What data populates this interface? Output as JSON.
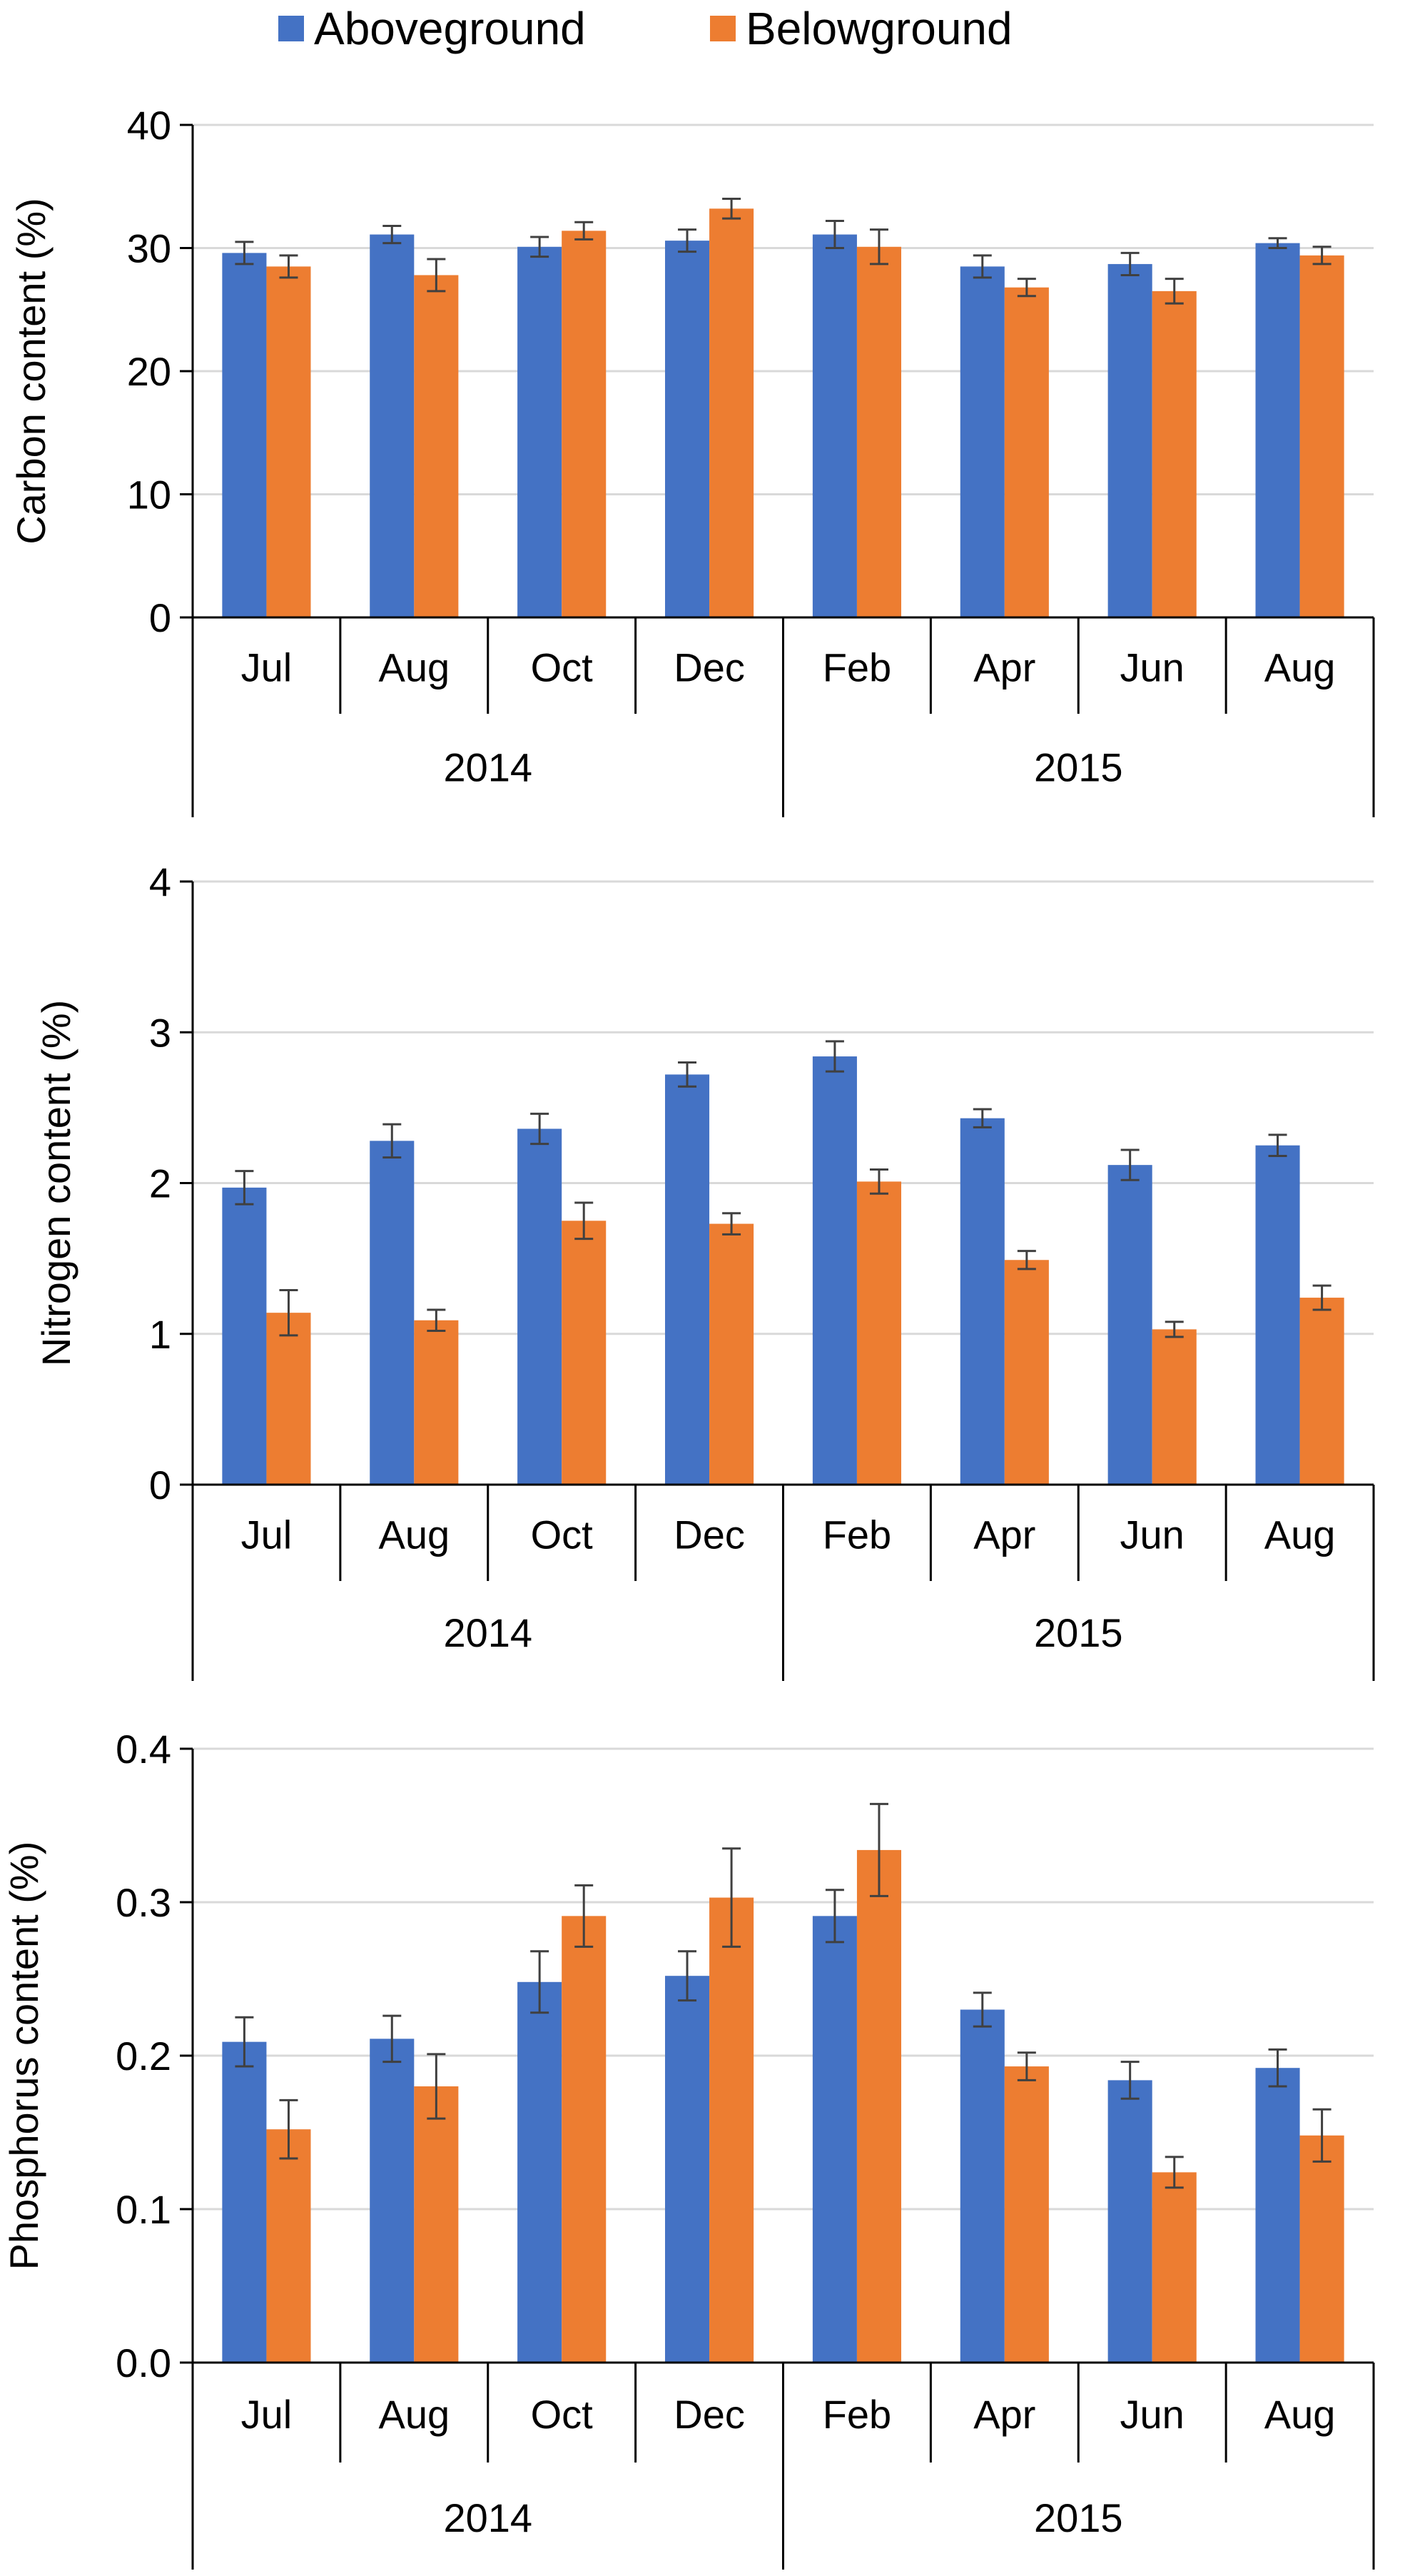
{
  "legend": {
    "aboveground": "Aboveground",
    "belowground": "Belowground"
  },
  "colors": {
    "aboveground": "#4472C4",
    "belowground": "#ED7D31",
    "grid": "#D9D9D9",
    "axis": "#000000"
  },
  "chart_data": [
    {
      "type": "bar",
      "ylabel": "Carbon content (%)",
      "ylim": [
        0,
        40
      ],
      "yticks": [
        "0",
        "10",
        "20",
        "30",
        "40"
      ],
      "categories": [
        "Jul",
        "Aug",
        "Oct",
        "Dec",
        "Feb",
        "Apr",
        "Jun",
        "Aug"
      ],
      "groups": [
        {
          "label": "2014",
          "count": 4
        },
        {
          "label": "2015",
          "count": 4
        }
      ],
      "series": [
        {
          "name": "Aboveground",
          "values": [
            29.6,
            31.1,
            30.1,
            30.6,
            31.1,
            28.5,
            28.7,
            30.4
          ],
          "errors": [
            0.9,
            0.7,
            0.8,
            0.9,
            1.1,
            0.9,
            0.9,
            0.4
          ]
        },
        {
          "name": "Belowground",
          "values": [
            28.5,
            27.8,
            31.4,
            33.2,
            30.1,
            26.8,
            26.5,
            29.4
          ],
          "errors": [
            0.9,
            1.3,
            0.7,
            0.8,
            1.4,
            0.7,
            1.0,
            0.7
          ]
        }
      ]
    },
    {
      "type": "bar",
      "ylabel": "Nitrogen content (%)",
      "ylim": [
        0,
        4
      ],
      "yticks": [
        "0",
        "1",
        "2",
        "3",
        "4"
      ],
      "categories": [
        "Jul",
        "Aug",
        "Oct",
        "Dec",
        "Feb",
        "Apr",
        "Jun",
        "Aug"
      ],
      "groups": [
        {
          "label": "2014",
          "count": 4
        },
        {
          "label": "2015",
          "count": 4
        }
      ],
      "series": [
        {
          "name": "Aboveground",
          "values": [
            1.97,
            2.28,
            2.36,
            2.72,
            2.84,
            2.43,
            2.12,
            2.25
          ],
          "errors": [
            0.11,
            0.11,
            0.1,
            0.08,
            0.1,
            0.06,
            0.1,
            0.07
          ]
        },
        {
          "name": "Belowground",
          "values": [
            1.14,
            1.09,
            1.75,
            1.73,
            2.01,
            1.49,
            1.03,
            1.24
          ],
          "errors": [
            0.15,
            0.07,
            0.12,
            0.07,
            0.08,
            0.06,
            0.05,
            0.08
          ]
        }
      ]
    },
    {
      "type": "bar",
      "ylabel": "Phosphorus content (%)",
      "ylim": [
        0,
        0.4
      ],
      "yticks": [
        "0.0",
        "0.1",
        "0.2",
        "0.3",
        "0.4"
      ],
      "categories": [
        "Jul",
        "Aug",
        "Oct",
        "Dec",
        "Feb",
        "Apr",
        "Jun",
        "Aug"
      ],
      "groups": [
        {
          "label": "2014",
          "count": 4
        },
        {
          "label": "2015",
          "count": 4
        }
      ],
      "series": [
        {
          "name": "Aboveground",
          "values": [
            0.209,
            0.211,
            0.248,
            0.252,
            0.291,
            0.23,
            0.184,
            0.192
          ],
          "errors": [
            0.016,
            0.015,
            0.02,
            0.016,
            0.017,
            0.011,
            0.012,
            0.012
          ]
        },
        {
          "name": "Belowground",
          "values": [
            0.152,
            0.18,
            0.291,
            0.303,
            0.334,
            0.193,
            0.124,
            0.148
          ],
          "errors": [
            0.019,
            0.021,
            0.02,
            0.032,
            0.03,
            0.009,
            0.01,
            0.017
          ]
        }
      ]
    }
  ]
}
